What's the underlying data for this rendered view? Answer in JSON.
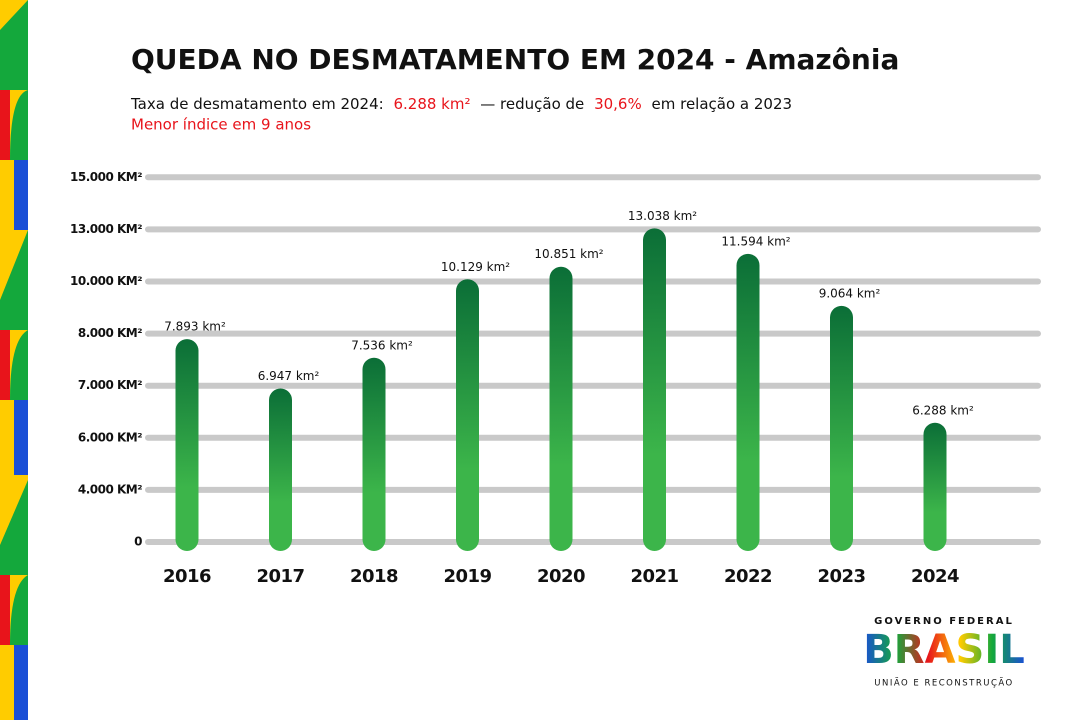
{
  "chart_data": {
    "type": "bar",
    "title": "QUEDA NO DESMATAMENTO EM 2024 - Amazônia",
    "subtitle_parts": [
      "Taxa de desmatamento em 2024:",
      "6.288 km²",
      "— redução de",
      "30,6%",
      "em relação a 2023"
    ],
    "annotation": "Menor índice em 9 anos",
    "categories": [
      "2016",
      "2017",
      "2018",
      "2019",
      "2020",
      "2021",
      "2022",
      "2023",
      "2024"
    ],
    "values": [
      7893,
      6947,
      7536,
      10129,
      10851,
      13038,
      11594,
      9064,
      6288
    ],
    "value_labels": [
      "7.893 km²",
      "6.947 km²",
      "7.536 km²",
      "10.129 km²",
      "10.851 km²",
      "13.038 km²",
      "11.594 km²",
      "9.064 km²",
      "6.288  km²"
    ],
    "color": "#3cb54a",
    "ylim": [
      0,
      15000
    ],
    "yticks": [
      0,
      {
        "value": 4000,
        "label": "4.000 KM²"
      },
      {
        "value": 6000,
        "label": "6.000 KM²"
      },
      {
        "value": 7000,
        "label": "7.000 KM²"
      },
      {
        "value": 8000,
        "label": "8.000 KM²"
      },
      {
        "value": 10000,
        "label": "10.000 KM²"
      },
      {
        "value": 13000,
        "label": "13.000 KM²"
      },
      {
        "value": 15000,
        "label": "15.000 KM²"
      }
    ],
    "grid": true
  },
  "logo": {
    "top": "GOVERNO FEDERAL",
    "name": "BRASIL",
    "tagline": "UNIÃO E RECONSTRUÇÃO"
  }
}
